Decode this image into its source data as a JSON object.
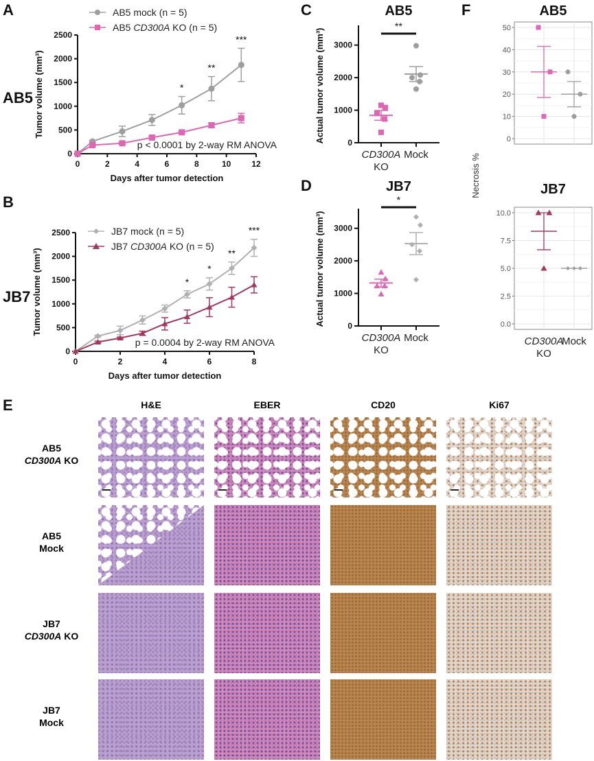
{
  "panels": {
    "A": "A",
    "B": "B",
    "C": "C",
    "D": "D",
    "E": "E",
    "F": "F"
  },
  "row_labels": {
    "ab5": "AB5",
    "jb7": "JB7"
  },
  "colors": {
    "ab5_mock": "#9e9e9e",
    "ab5_ko": "#e066b3",
    "jb7_mock": "#b0b0b0",
    "jb7_ko": "#a3375e"
  },
  "chart_data": [
    {
      "id": "A",
      "type": "line",
      "xlabel": "Days after tumor detection",
      "ylabel": "Tumor volume (mm³)",
      "xlim": [
        0,
        12
      ],
      "ylim": [
        0,
        2500
      ],
      "xticks": [
        0,
        2,
        4,
        6,
        8,
        10,
        12
      ],
      "yticks": [
        0,
        500,
        1000,
        1500,
        2000,
        2500
      ],
      "annotation": "p < 0.0001 by 2-way RM ANOVA",
      "legend_position": "top",
      "x": [
        0,
        1,
        3,
        5,
        7,
        9,
        11
      ],
      "series": [
        {
          "name": "AB5 mock (n = 5)",
          "name_pre": "AB5 ",
          "name_it": "",
          "name_post": "mock (n = 5)",
          "marker": "circle",
          "values": [
            0,
            260,
            470,
            710,
            1020,
            1370,
            1870
          ],
          "errors": [
            0,
            20,
            110,
            115,
            185,
            255,
            350
          ]
        },
        {
          "name": "AB5 CD300A KO (n = 5)",
          "name_pre": "AB5 ",
          "name_it": "CD300A",
          "name_post": " KO (n = 5)",
          "marker": "square",
          "values": [
            0,
            180,
            220,
            340,
            450,
            600,
            750
          ],
          "errors": [
            0,
            20,
            20,
            20,
            20,
            50,
            100
          ]
        }
      ],
      "significance": [
        {
          "x": 7,
          "label": "*"
        },
        {
          "x": 9,
          "label": "**"
        },
        {
          "x": 11,
          "label": "***"
        }
      ]
    },
    {
      "id": "B",
      "type": "line",
      "xlabel": "Days after tumor detection",
      "ylabel": "Tumor volume (mm³)",
      "xlim": [
        0,
        8
      ],
      "ylim": [
        0,
        2500
      ],
      "xticks": [
        0,
        2,
        4,
        6,
        8
      ],
      "yticks": [
        0,
        500,
        1000,
        1500,
        2000,
        2500
      ],
      "annotation": "p = 0.0004 by 2-way RM ANOVA",
      "legend_position": "top-left",
      "x": [
        0,
        1,
        2,
        3,
        4,
        5,
        6,
        7,
        8
      ],
      "series": [
        {
          "name": "JB7 mock (n = 5)",
          "name_pre": "JB7 ",
          "name_it": "",
          "name_post": "mock (n = 5)",
          "marker": "diamond",
          "values": [
            0,
            320,
            440,
            660,
            900,
            1200,
            1420,
            1750,
            2180
          ],
          "errors": [
            0,
            20,
            90,
            85,
            75,
            75,
            130,
            130,
            180
          ]
        },
        {
          "name": "JB7 CD300A KO (n = 5)",
          "name_pre": "JB7 ",
          "name_it": "CD300A",
          "name_post": " KO (n = 5)",
          "marker": "triangle",
          "values": [
            0,
            195,
            280,
            380,
            580,
            730,
            930,
            1140,
            1400
          ],
          "errors": [
            0,
            20,
            20,
            45,
            130,
            140,
            200,
            210,
            170
          ]
        }
      ],
      "significance": [
        {
          "x": 5,
          "label": "*"
        },
        {
          "x": 6,
          "label": "*"
        },
        {
          "x": 7,
          "label": "**"
        },
        {
          "x": 8,
          "label": "***"
        }
      ]
    },
    {
      "id": "C",
      "type": "scatter",
      "title": "AB5",
      "ylabel": "Actual tumor volume (mm³)",
      "ylim": [
        0,
        3500
      ],
      "yticks": [
        0,
        1000,
        2000,
        3000
      ],
      "significance": "**",
      "groups": [
        {
          "label_it": "CD300A",
          "label2": "KO",
          "marker": "square",
          "points": [
            1150,
            1080,
            900,
            730,
            320
          ],
          "mean": 840,
          "sem": 150
        },
        {
          "label_it": "",
          "label2": "Mock",
          "marker": "circle",
          "points": [
            2980,
            2080,
            2000,
            1880,
            1650
          ],
          "mean": 2110,
          "sem": 230
        }
      ]
    },
    {
      "id": "D",
      "type": "scatter",
      "title": "JB7",
      "ylabel": "Actual tumor volume (mm³)",
      "ylim": [
        0,
        3500
      ],
      "yticks": [
        0,
        1000,
        2000,
        3000
      ],
      "significance": "*",
      "groups": [
        {
          "label_it": "CD300A",
          "label2": "KO",
          "marker": "triangle",
          "points": [
            1650,
            1450,
            1230,
            1230,
            980
          ],
          "mean": 1320,
          "sem": 120
        },
        {
          "label_it": "",
          "label2": "Mock",
          "marker": "diamond",
          "points": [
            3350,
            3100,
            2500,
            2300,
            1420
          ],
          "mean": 2530,
          "sem": 340
        }
      ]
    },
    {
      "id": "F-AB5",
      "type": "scatter",
      "title": "AB5",
      "ylabel": "Necrosis %",
      "ylim": [
        0,
        50
      ],
      "yticks": [
        "0",
        "10",
        "20",
        "30",
        "40",
        "50"
      ],
      "grid": true,
      "groups": [
        {
          "label_it": "CD300A",
          "label2": "KO",
          "marker": "square",
          "points": [
            50,
            30,
            10
          ],
          "mean": 30,
          "lo": 18.5,
          "hi": 41.5
        },
        {
          "label_it": "",
          "label2": "Mock",
          "marker": "circle",
          "points": [
            30,
            20,
            10
          ],
          "mean": 20,
          "lo": 14.3,
          "hi": 25.7
        }
      ]
    },
    {
      "id": "F-JB7",
      "type": "scatter",
      "title": "JB7",
      "ylabel": "Necrosis %",
      "ylim": [
        0,
        10
      ],
      "yticks": [
        "0.0",
        "2.5",
        "5.0",
        "7.5",
        "10.0"
      ],
      "grid": true,
      "groups": [
        {
          "label_it": "CD300A",
          "label2": "KO",
          "marker": "triangle",
          "points": [
            10,
            10,
            5
          ],
          "mean": 8.33,
          "lo": 6.67,
          "hi": 10
        },
        {
          "label_it": "",
          "label2": "Mock",
          "marker": "diamond",
          "points": [
            5,
            5,
            5
          ],
          "mean": 5,
          "lo": 5,
          "hi": 5
        }
      ]
    }
  ],
  "necrosis_label": "Necrosis %",
  "histology": {
    "columns": [
      "H&E",
      "EBER",
      "CD20",
      "Ki67"
    ],
    "rows": [
      {
        "line1": "AB5",
        "line2": "CD300A",
        "line3": " KO"
      },
      {
        "line1": "AB5",
        "line2": "Mock",
        "line3": ""
      },
      {
        "line1": "JB7",
        "line2": "CD300A",
        "line3": " KO"
      },
      {
        "line1": "JB7",
        "line2": "Mock",
        "line3": ""
      }
    ]
  }
}
